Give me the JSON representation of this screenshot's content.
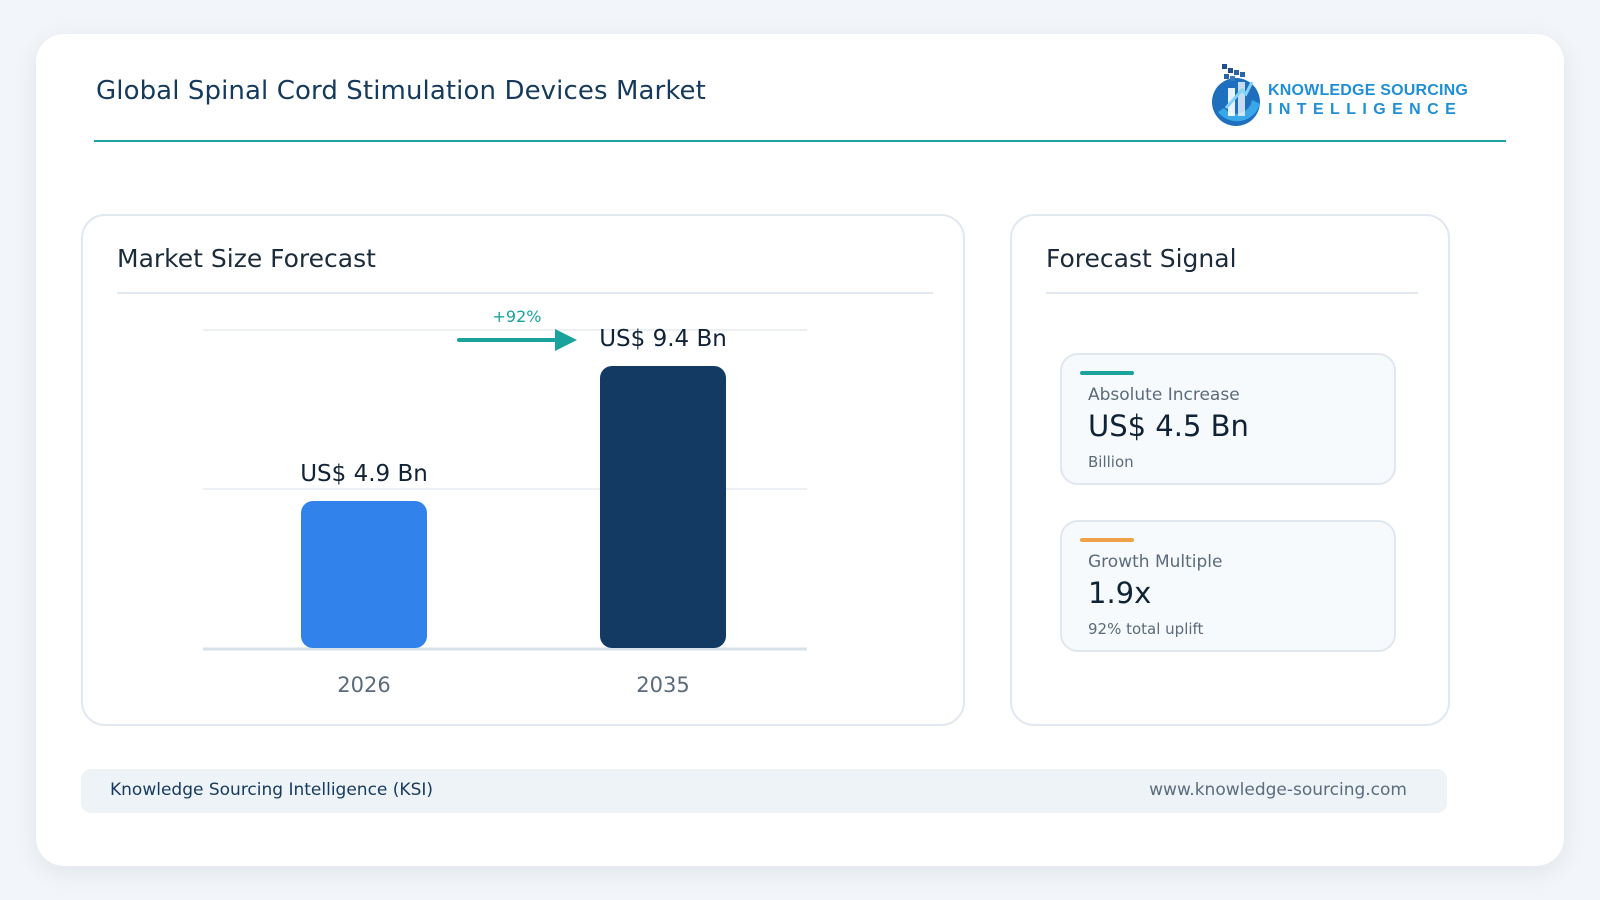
{
  "header": {
    "title": "Global Spinal Cord Stimulation Devices Market",
    "logo": {
      "line1": "KNOWLEDGE SOURCING",
      "line2": "INTELLIGENCE",
      "icon": "ksi-logo-icon"
    }
  },
  "left_panel": {
    "title": "Market Size Forecast"
  },
  "right_panel": {
    "title": "Forecast Signal",
    "stats": [
      {
        "label": "Absolute Increase",
        "value": "US$ 4.5 Bn",
        "note": "Billion",
        "accent": "#1aa39c"
      },
      {
        "label": "Growth Multiple",
        "value": "1.9x",
        "note": "92% total uplift",
        "accent": "#f0a24a"
      }
    ]
  },
  "footer": {
    "left": "Knowledge Sourcing Intelligence (KSI)",
    "right": "www.knowledge-sourcing.com"
  },
  "colors": {
    "accent": "#1aa39c",
    "bar_2026": "#3182ea",
    "bar_2035": "#133a63",
    "title_navy": "#153a5e"
  },
  "chart_data": {
    "type": "bar",
    "categories": [
      "2026",
      "2035"
    ],
    "values": [
      4.9,
      9.4
    ],
    "value_labels": [
      "US$ 4.9 Bn",
      "US$ 9.4 Bn"
    ],
    "bar_colors": [
      "#3182ea",
      "#133a63"
    ],
    "growth_label": "+92%",
    "ylim": [
      0,
      10.6
    ],
    "grid": true
  }
}
